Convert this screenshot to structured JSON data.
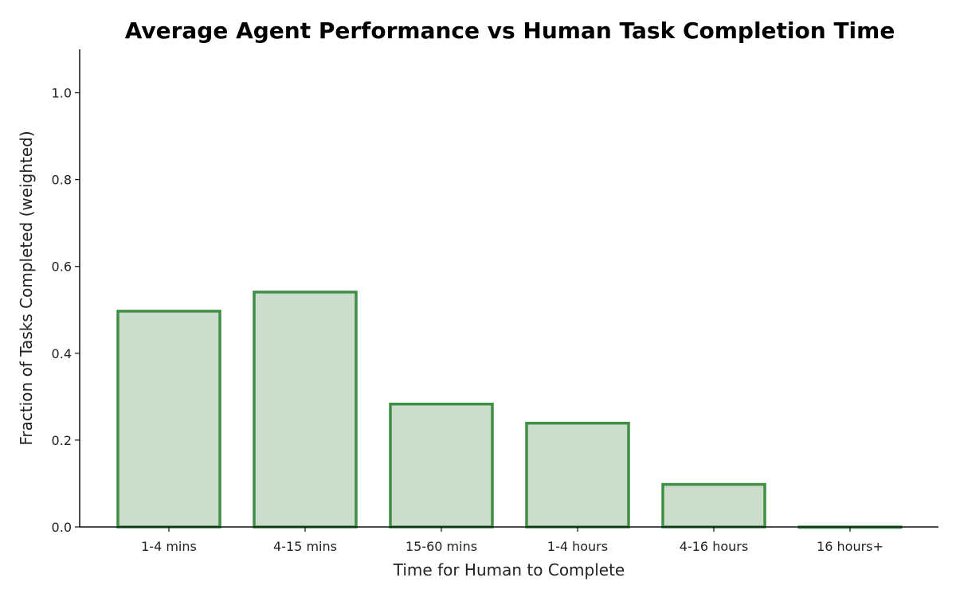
{
  "chart_data": {
    "type": "bar",
    "title": "Average Agent Performance vs Human Task Completion Time",
    "xlabel": "Time for Human to Complete",
    "ylabel": "Fraction of Tasks Completed (weighted)",
    "categories": [
      "1-4 mins",
      "4-15 mins",
      "15-60 mins",
      "1-4 hours",
      "4-16 hours",
      "16 hours+"
    ],
    "values": [
      0.497,
      0.541,
      0.283,
      0.239,
      0.098,
      0.0
    ],
    "ylim": [
      0,
      1.1
    ],
    "yticks": [
      "0.0",
      "0.2",
      "0.4",
      "0.6",
      "0.8",
      "1.0"
    ],
    "grid": false,
    "colors": {
      "bar_fill": "#ccdccd",
      "bar_edge": "#3f8f45"
    }
  }
}
